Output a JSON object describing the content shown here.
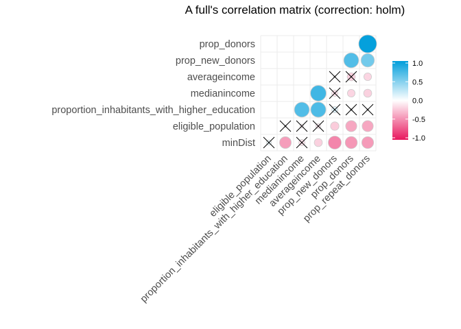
{
  "chart_data": {
    "type": "heatmap",
    "title": "A full's correlation matrix (correction: holm)",
    "x_labels": [
      "eligible_population",
      "proportion_inhabitants_with_higher_education",
      "medianincome",
      "averageincome",
      "prop_new_donors",
      "prop_donors",
      "prop_repeat_donors"
    ],
    "y_labels": [
      "minDist",
      "eligible_population",
      "proportion_inhabitants_with_higher_education",
      "medianincome",
      "averageincome",
      "prop_new_donors",
      "prop_donors"
    ],
    "cells": [
      {
        "y": "minDist",
        "x": "eligible_population",
        "r": 0.08,
        "significant": false
      },
      {
        "y": "minDist",
        "x": "proportion_inhabitants_with_higher_education",
        "r": -0.42,
        "significant": true
      },
      {
        "y": "minDist",
        "x": "medianincome",
        "r": -0.12,
        "significant": false
      },
      {
        "y": "minDist",
        "x": "averageincome",
        "r": -0.2,
        "significant": true
      },
      {
        "y": "minDist",
        "x": "prop_new_donors",
        "r": -0.52,
        "significant": true
      },
      {
        "y": "minDist",
        "x": "prop_donors",
        "r": -0.45,
        "significant": true
      },
      {
        "y": "minDist",
        "x": "prop_repeat_donors",
        "r": -0.43,
        "significant": true
      },
      {
        "y": "eligible_population",
        "x": "proportion_inhabitants_with_higher_education",
        "r": 0.0,
        "significant": false
      },
      {
        "y": "eligible_population",
        "x": "medianincome",
        "r": -0.05,
        "significant": false
      },
      {
        "y": "eligible_population",
        "x": "averageincome",
        "r": -0.08,
        "significant": false
      },
      {
        "y": "eligible_population",
        "x": "prop_new_donors",
        "r": -0.22,
        "significant": true
      },
      {
        "y": "eligible_population",
        "x": "prop_donors",
        "r": -0.38,
        "significant": true
      },
      {
        "y": "eligible_population",
        "x": "prop_repeat_donors",
        "r": -0.38,
        "significant": true
      },
      {
        "y": "proportion_inhabitants_with_higher_education",
        "x": "medianincome",
        "r": 0.68,
        "significant": true
      },
      {
        "y": "proportion_inhabitants_with_higher_education",
        "x": "averageincome",
        "r": 0.7,
        "significant": true
      },
      {
        "y": "proportion_inhabitants_with_higher_education",
        "x": "prop_new_donors",
        "r": 0.12,
        "significant": false
      },
      {
        "y": "proportion_inhabitants_with_higher_education",
        "x": "prop_donors",
        "r": 0.02,
        "significant": false
      },
      {
        "y": "proportion_inhabitants_with_higher_education",
        "x": "prop_repeat_donors",
        "r": 0.0,
        "significant": false
      },
      {
        "y": "medianincome",
        "x": "averageincome",
        "r": 0.75,
        "significant": true
      },
      {
        "y": "medianincome",
        "x": "prop_new_donors",
        "r": -0.12,
        "significant": false
      },
      {
        "y": "medianincome",
        "x": "prop_donors",
        "r": -0.18,
        "significant": true
      },
      {
        "y": "medianincome",
        "x": "prop_repeat_donors",
        "r": -0.2,
        "significant": true
      },
      {
        "y": "averageincome",
        "x": "prop_new_donors",
        "r": 0.0,
        "significant": false
      },
      {
        "y": "averageincome",
        "x": "prop_donors",
        "r": -0.2,
        "significant": false
      },
      {
        "y": "averageincome",
        "x": "prop_repeat_donors",
        "r": -0.18,
        "significant": true
      },
      {
        "y": "prop_new_donors",
        "x": "prop_donors",
        "r": 0.68,
        "significant": true
      },
      {
        "y": "prop_new_donors",
        "x": "prop_repeat_donors",
        "r": 0.55,
        "significant": true
      },
      {
        "y": "prop_donors",
        "x": "prop_repeat_donors",
        "r": 0.98,
        "significant": true
      }
    ],
    "legend": {
      "position": "right",
      "range": [
        -1.0,
        1.0
      ],
      "ticks": [
        1.0,
        0.5,
        0.0,
        -0.5,
        -1.0
      ],
      "tick_labels": [
        "1.0",
        "0.5",
        "0.0",
        "-0.5",
        "-1.0"
      ],
      "colors": {
        "low": "#E8175D",
        "mid": "#FFFFFF",
        "high": "#009EDB"
      }
    },
    "grid": true,
    "marker": "circle",
    "nonsignificant_marker": "cross"
  }
}
